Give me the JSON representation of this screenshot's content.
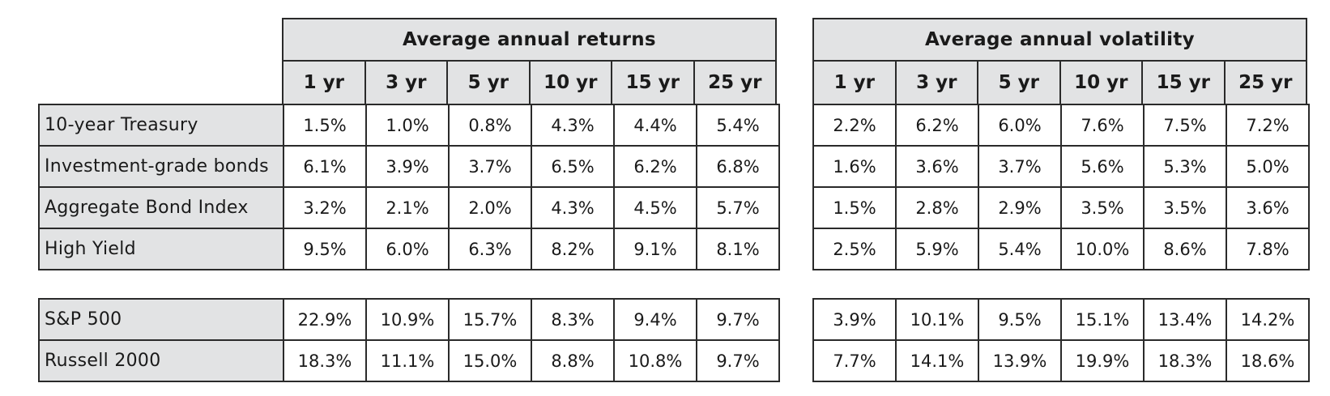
{
  "returns_header": {
    "title": "Average annual returns",
    "periods": [
      "1 yr",
      "3 yr",
      "5 yr",
      "10 yr",
      "15 yr",
      "25 yr"
    ]
  },
  "volatility_header": {
    "title": "Average annual volatility",
    "periods": [
      "1 yr",
      "3 yr",
      "5 yr",
      "10 yr",
      "15 yr",
      "25 yr"
    ]
  },
  "bonds": [
    {
      "label": "10-year Treasury",
      "returns": [
        "1.5%",
        "1.0%",
        "0.8%",
        "4.3%",
        "4.4%",
        "5.4%"
      ],
      "volatility": [
        "2.2%",
        "6.2%",
        "6.0%",
        "7.6%",
        "7.5%",
        "7.2%"
      ]
    },
    {
      "label": "Investment-grade bonds",
      "returns": [
        "6.1%",
        "3.9%",
        "3.7%",
        "6.5%",
        "6.2%",
        "6.8%"
      ],
      "volatility": [
        "1.6%",
        "3.6%",
        "3.7%",
        "5.6%",
        "5.3%",
        "5.0%"
      ]
    },
    {
      "label": "Aggregate Bond Index",
      "returns": [
        "3.2%",
        "2.1%",
        "2.0%",
        "4.3%",
        "4.5%",
        "5.7%"
      ],
      "volatility": [
        "1.5%",
        "2.8%",
        "2.9%",
        "3.5%",
        "3.5%",
        "3.6%"
      ]
    },
    {
      "label": "High Yield",
      "returns": [
        "9.5%",
        "6.0%",
        "6.3%",
        "8.2%",
        "9.1%",
        "8.1%"
      ],
      "volatility": [
        "2.5%",
        "5.9%",
        "5.4%",
        "10.0%",
        "8.6%",
        "7.8%"
      ]
    }
  ],
  "equities": [
    {
      "label": "S&P 500",
      "returns": [
        "22.9%",
        "10.9%",
        "15.7%",
        "8.3%",
        "9.4%",
        "9.7%"
      ],
      "volatility": [
        "3.9%",
        "10.1%",
        "9.5%",
        "15.1%",
        "13.4%",
        "14.2%"
      ]
    },
    {
      "label": "Russell 2000",
      "returns": [
        "18.3%",
        "11.1%",
        "15.0%",
        "8.8%",
        "10.8%",
        "9.7%"
      ],
      "volatility": [
        "7.7%",
        "14.1%",
        "13.9%",
        "19.9%",
        "18.3%",
        "18.6%"
      ]
    }
  ]
}
